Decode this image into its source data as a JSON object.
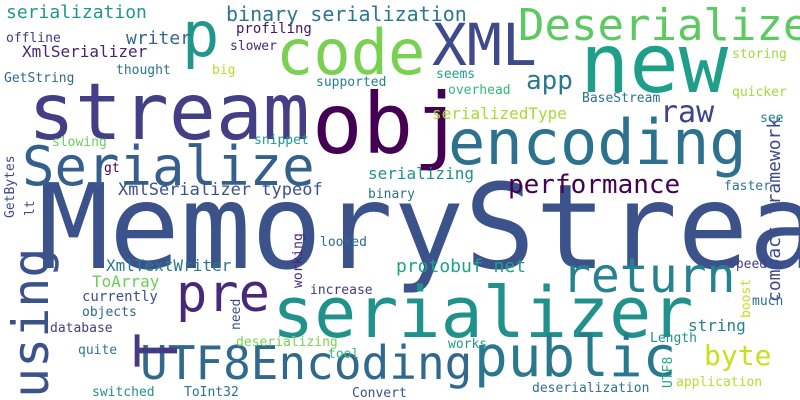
{
  "background": "#ffffff",
  "words": [
    {
      "text": "MemoryStream",
      "color": "#3b528b"
    },
    {
      "text": "serializer",
      "color": "#21918c"
    },
    {
      "text": "stream",
      "color": "#433e85"
    },
    {
      "text": "encoding",
      "color": "#2c728e"
    },
    {
      "text": "obj",
      "color": "#440154"
    },
    {
      "text": "new",
      "color": "#1f9e89"
    },
    {
      "text": "XML",
      "color": "#3e4a89"
    },
    {
      "text": "Serialize",
      "color": "#355f8d"
    },
    {
      "text": "public",
      "color": "#2a788e"
    },
    {
      "text": "UTF8Encoding",
      "color": "#31688e"
    },
    {
      "text": "code",
      "color": "#7ad151"
    },
    {
      "text": "p",
      "color": "#1f988b"
    },
    {
      "text": "pre",
      "color": "#482878"
    },
    {
      "text": "Deserialize",
      "color": "#5ec962"
    },
    {
      "text": "return",
      "color": "#26828e"
    },
    {
      "text": "using",
      "color": "#3b528b"
    },
    {
      "text": "T",
      "color": "#443983"
    },
    {
      "text": "performance",
      "color": "#440154"
    },
    {
      "text": "byte",
      "color": "#c8e020"
    },
    {
      "text": "raw",
      "color": "#404387"
    },
    {
      "text": "app",
      "color": "#2a788e"
    },
    {
      "text": "binary serialization",
      "color": "#2a788e"
    },
    {
      "text": "serialization",
      "color": "#1f988b"
    },
    {
      "text": "XmlSerializer",
      "color": "#482475"
    },
    {
      "text": "writer",
      "color": "#31688e"
    },
    {
      "text": "profiling",
      "color": "#471365"
    },
    {
      "text": "offline",
      "color": "#443983"
    },
    {
      "text": "slower",
      "color": "#482878"
    },
    {
      "text": "storing",
      "color": "#9fda3a"
    },
    {
      "text": "GetString",
      "color": "#31688e"
    },
    {
      "text": "thought",
      "color": "#2c728e"
    },
    {
      "text": "big",
      "color": "#b5de2b"
    },
    {
      "text": "supported",
      "color": "#26828e"
    },
    {
      "text": "seems",
      "color": "#1fa188"
    },
    {
      "text": "quicker",
      "color": "#a2da37"
    },
    {
      "text": "BaseStream",
      "color": "#2c728e"
    },
    {
      "text": "overhead",
      "color": "#35b779"
    },
    {
      "text": "serializedType",
      "color": "#a5db36"
    },
    {
      "text": "compact framework",
      "color": "#3e4a89"
    },
    {
      "text": "see",
      "color": "#26828e"
    },
    {
      "text": "snippet",
      "color": "#1f988b"
    },
    {
      "text": "slowing",
      "color": "#6ccd5a"
    },
    {
      "text": "serializing",
      "color": "#21918c"
    },
    {
      "text": "faster",
      "color": "#2a788e"
    },
    {
      "text": "gt",
      "color": "#440154"
    },
    {
      "text": "XmlSerializer typeof",
      "color": "#3b528b"
    },
    {
      "text": "binary",
      "color": "#2c728e"
    },
    {
      "text": "GetBytes",
      "color": "#3e4a89"
    },
    {
      "text": "lt",
      "color": "#3b528b"
    },
    {
      "text": "looked",
      "color": "#31688e"
    },
    {
      "text": "XmlTextWriter",
      "color": "#2a788e"
    },
    {
      "text": "protobuf net",
      "color": "#1fa188"
    },
    {
      "text": "working",
      "color": "#482878"
    },
    {
      "text": "speed",
      "color": "#433e85"
    },
    {
      "text": "ToArray",
      "color": "#6ccd5a"
    },
    {
      "text": "currently",
      "color": "#3b528b"
    },
    {
      "text": "increase",
      "color": "#443983"
    },
    {
      "text": "boost",
      "color": "#c8e020"
    },
    {
      "text": "objects",
      "color": "#31688e"
    },
    {
      "text": "need",
      "color": "#3e4a89"
    },
    {
      "text": "much",
      "color": "#31688e"
    },
    {
      "text": "database",
      "color": "#433e85"
    },
    {
      "text": "string",
      "color": "#26828e"
    },
    {
      "text": "deserializing",
      "color": "#7ad151"
    },
    {
      "text": "quite",
      "color": "#2a788e"
    },
    {
      "text": "tool",
      "color": "#35b779"
    },
    {
      "text": "works",
      "color": "#1f988b"
    },
    {
      "text": "Length",
      "color": "#21918c"
    },
    {
      "text": "UTF8",
      "color": "#22a884"
    },
    {
      "text": "application",
      "color": "#b5de2b"
    },
    {
      "text": "switched",
      "color": "#21918c"
    },
    {
      "text": "ToInt32",
      "color": "#2c728e"
    },
    {
      "text": "Convert",
      "color": "#3b528b"
    },
    {
      "text": "deserialization",
      "color": "#2c728e"
    }
  ]
}
